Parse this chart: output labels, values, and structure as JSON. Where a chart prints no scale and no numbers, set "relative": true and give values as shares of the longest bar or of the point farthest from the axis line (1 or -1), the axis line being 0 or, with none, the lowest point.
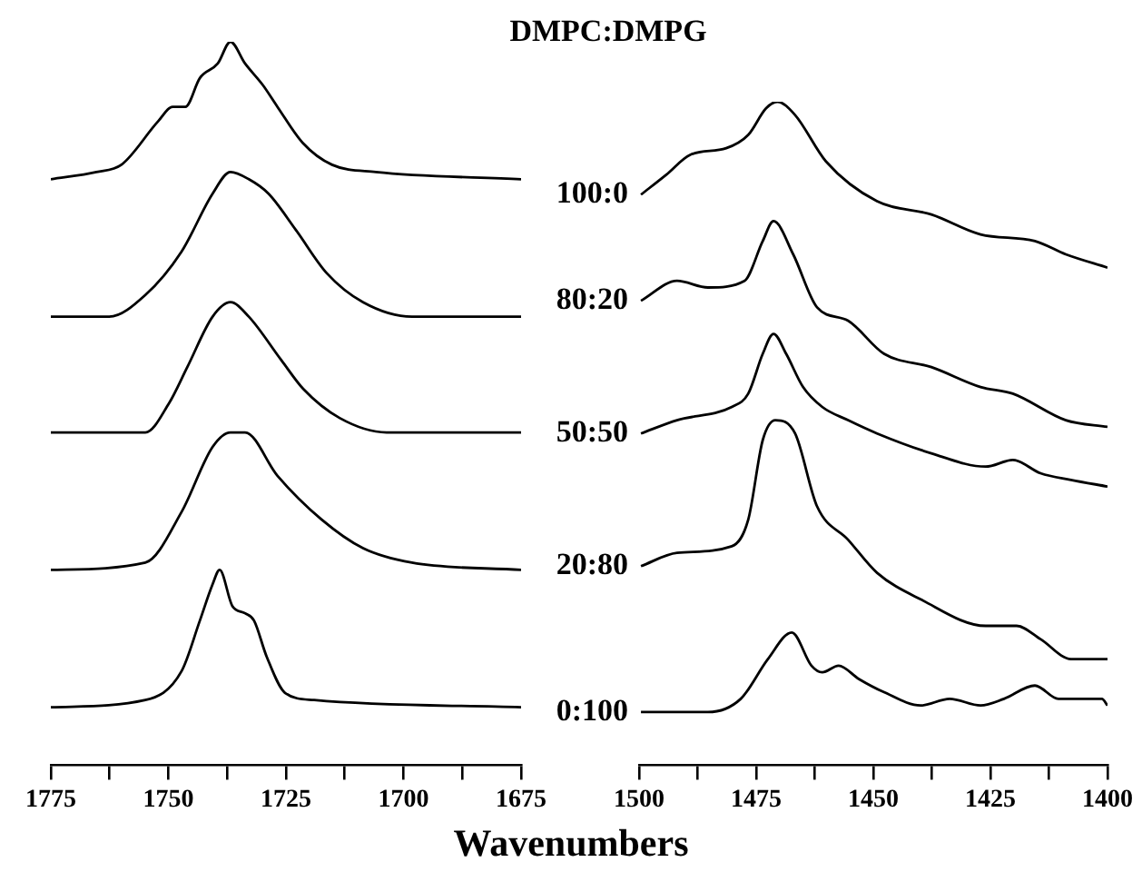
{
  "chart_data": [
    {
      "type": "line",
      "relative": true,
      "legend": false,
      "xlabel": "Wavenumbers",
      "xlim": [
        1775,
        1675
      ],
      "xticks": [
        1775,
        {
          "value": 1762.5,
          "label": null
        },
        1750,
        {
          "value": 1737.5,
          "label": null
        },
        1725,
        {
          "value": 1712.5,
          "label": null
        },
        1700,
        {
          "value": 1687.5,
          "label": null
        },
        1675
      ],
      "series": [
        {
          "color": "#000000",
          "x": [
            1775,
            1765.3,
            1760,
            1752.2,
            1749.1,
            1746.4,
            1743.3,
            1739.5,
            1736.8,
            1733.7,
            1729.9,
            1726.8,
            1721.4,
            1715.2,
            1705.9,
            1675
          ],
          "values": [
            0.81,
            0.82,
            0.83,
            0.89,
            0.91,
            0.91,
            0.95,
            0.97,
            1,
            0.97,
            0.94,
            0.91,
            0.86,
            0.83,
            0.82,
            0.81
          ]
        },
        {
          "color": "#000000",
          "x": [
            1775,
            1762.6,
            1754.9,
            1747.2,
            1740.6,
            1736.8,
            1732.9,
            1728.7,
            1722.9,
            1716.3,
            1708.6,
            1698.2,
            1675
          ],
          "values": [
            0.62,
            0.62,
            0.65,
            0.71,
            0.79,
            0.82,
            0.81,
            0.79,
            0.74,
            0.68,
            0.64,
            0.62,
            0.62
          ]
        },
        {
          "color": "#000000",
          "x": [
            1775,
            1754.9,
            1749.9,
            1746,
            1740.6,
            1736.8,
            1732.9,
            1726,
            1721.3,
            1713.6,
            1703.6,
            1675
          ],
          "values": [
            0.46,
            0.46,
            0.5,
            0.55,
            0.62,
            0.64,
            0.62,
            0.56,
            0.52,
            0.48,
            0.46,
            0.46
          ]
        },
        {
          "color": "#000000",
          "x": [
            1775,
            1754.9,
            1747.2,
            1740.6,
            1736.8,
            1733.7,
            1726.8,
            1717.5,
            1708.6,
            1698.2,
            1675
          ],
          "values": [
            0.27,
            0.28,
            0.35,
            0.44,
            0.46,
            0.46,
            0.4,
            0.34,
            0.3,
            0.28,
            0.27
          ]
        },
        {
          "color": "#000000",
          "x": [
            1775,
            1754.9,
            1747.2,
            1743.3,
            1740.6,
            1739.1,
            1736.4,
            1733.7,
            1731.8,
            1729.1,
            1725.2,
            1719,
            1675
          ],
          "values": [
            0.08,
            0.09,
            0.13,
            0.2,
            0.25,
            0.27,
            0.22,
            0.21,
            0.2,
            0.15,
            0.1,
            0.09,
            0.08
          ]
        }
      ]
    },
    {
      "type": "line",
      "relative": true,
      "legend": false,
      "title": "DMPC:DMPG",
      "xlim": [
        1500,
        1400
      ],
      "xticks": [
        1500,
        {
          "value": 1487.5,
          "label": null
        },
        1475,
        {
          "value": 1462.5,
          "label": null
        },
        1450,
        {
          "value": 1437.5,
          "label": null
        },
        1425,
        {
          "value": 1412.5,
          "label": null
        },
        1400
      ],
      "series": [
        {
          "name": "100:0",
          "color": "#000000",
          "x": [
            1499.6,
            1494.2,
            1489.1,
            1481.4,
            1476.7,
            1472.9,
            1470.5,
            1466.7,
            1460.1,
            1449.2,
            1437.6,
            1427.1,
            1415.5,
            1408.9,
            1400
          ],
          "values": [
            0.86,
            0.89,
            0.92,
            0.93,
            0.95,
            0.99,
            1,
            0.98,
            0.91,
            0.85,
            0.83,
            0.8,
            0.79,
            0.77,
            0.75
          ]
        },
        {
          "name": "80:20",
          "color": "#000000",
          "x": [
            1499.6,
            1491.9,
            1485.3,
            1477.5,
            1473.6,
            1471.3,
            1467.1,
            1462,
            1455.4,
            1447.7,
            1437.6,
            1427.1,
            1420.2,
            1408.9,
            1400
          ],
          "values": [
            0.7,
            0.73,
            0.72,
            0.73,
            0.79,
            0.82,
            0.77,
            0.69,
            0.67,
            0.62,
            0.6,
            0.57,
            0.56,
            0.52,
            0.51
          ]
        },
        {
          "name": "50:50",
          "color": "#000000",
          "x": [
            1499.6,
            1491.9,
            1480.2,
            1476.7,
            1473.6,
            1471.3,
            1468.6,
            1465,
            1460.9,
            1455.4,
            1449.2,
            1437.6,
            1426,
            1420.2,
            1414.3,
            1407.8,
            1400
          ],
          "values": [
            0.5,
            0.52,
            0.54,
            0.56,
            0.62,
            0.65,
            0.62,
            0.57,
            0.54,
            0.52,
            0.5,
            0.47,
            0.45,
            0.46,
            0.44,
            0.43,
            0.42
          ]
        },
        {
          "name": "20:80",
          "color": "#000000",
          "x": [
            1499.6,
            1491.9,
            1480.2,
            1476.7,
            1473.6,
            1470.9,
            1466.7,
            1462,
            1455.4,
            1449.2,
            1439.9,
            1426,
            1419.4,
            1414.3,
            1407.8,
            1400
          ],
          "values": [
            0.3,
            0.32,
            0.33,
            0.37,
            0.49,
            0.52,
            0.5,
            0.39,
            0.34,
            0.29,
            0.25,
            0.21,
            0.21,
            0.19,
            0.16,
            0.16
          ]
        },
        {
          "name": "0:100",
          "color": "#000000",
          "x": [
            1499.6,
            1485.3,
            1478.3,
            1472.5,
            1467.4,
            1463.2,
            1460.9,
            1457.4,
            1453.1,
            1447.7,
            1439.9,
            1433.7,
            1427.1,
            1422.1,
            1415.5,
            1410.5,
            1405,
            1401.2,
            1400
          ],
          "values": [
            0.08,
            0.08,
            0.1,
            0.16,
            0.2,
            0.15,
            0.14,
            0.15,
            0.13,
            0.11,
            0.09,
            0.1,
            0.09,
            0.1,
            0.12,
            0.1,
            0.1,
            0.1,
            0.09
          ]
        }
      ]
    }
  ]
}
